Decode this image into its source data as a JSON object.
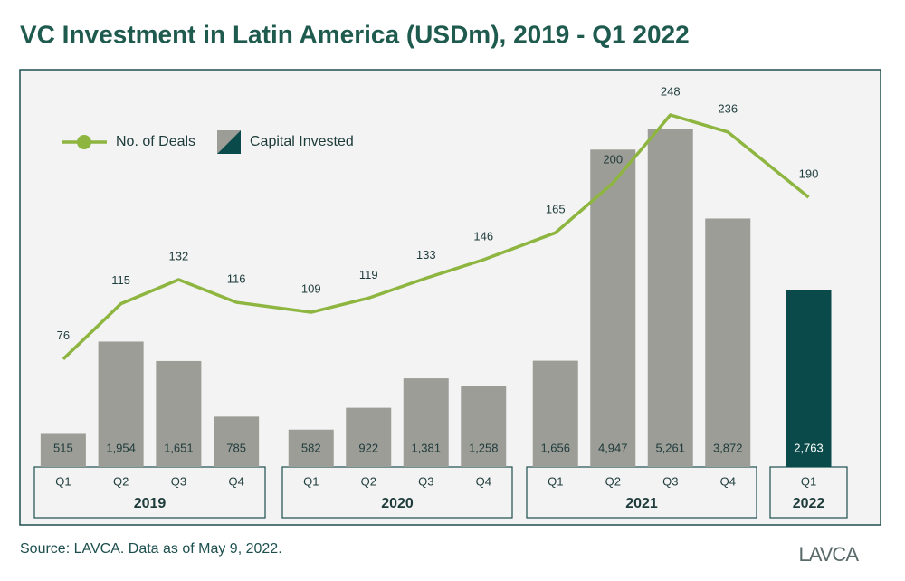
{
  "chart_data": {
    "type": "combo",
    "title": "VC Investment in Latin America (USDm), 2019 - Q1 2022",
    "groups": [
      {
        "name": "2019",
        "categories": [
          "Q1",
          "Q2",
          "Q3",
          "Q4"
        ]
      },
      {
        "name": "2020",
        "categories": [
          "Q1",
          "Q2",
          "Q3",
          "Q4"
        ]
      },
      {
        "name": "2021",
        "categories": [
          "Q1",
          "Q2",
          "Q3",
          "Q4"
        ]
      },
      {
        "name": "2022",
        "categories": [
          "Q1"
        ]
      }
    ],
    "series": [
      {
        "name": "No. of Deals",
        "type": "line",
        "color": "#8db53f",
        "values": [
          76,
          115,
          132,
          116,
          109,
          119,
          133,
          146,
          165,
          200,
          248,
          236,
          190
        ]
      },
      {
        "name": "Capital Invested",
        "type": "bar",
        "colors": [
          "#9d9d97",
          "#9d9d97",
          "#9d9d97",
          "#9d9d97",
          "#9d9d97",
          "#9d9d97",
          "#9d9d97",
          "#9d9d97",
          "#9d9d97",
          "#9d9d97",
          "#9d9d97",
          "#9d9d97",
          "#0b4a4a"
        ],
        "values": [
          515,
          1954,
          1651,
          785,
          582,
          922,
          1381,
          1258,
          1656,
          4947,
          5261,
          3872,
          2763
        ],
        "value_labels": [
          "515",
          "1,954",
          "1,651",
          "785",
          "582",
          "922",
          "1,381",
          "1,258",
          "1,656",
          "4,947",
          "5,261",
          "3,872",
          "2,763"
        ]
      }
    ],
    "legend": "top-left",
    "source": "Source: LAVCA.  Data as of May 9, 2022.",
    "logo": "LAVCA"
  }
}
